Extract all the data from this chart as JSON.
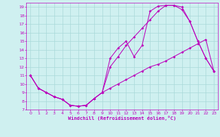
{
  "xlabel": "Windchill (Refroidissement éolien,°C)",
  "bg_color": "#cff0f0",
  "grid_color": "#a8d8d8",
  "line_color": "#bb00bb",
  "xlim": [
    -0.5,
    23.5
  ],
  "ylim": [
    7,
    19.5
  ],
  "xticks": [
    0,
    1,
    2,
    3,
    4,
    5,
    6,
    7,
    8,
    9,
    10,
    11,
    12,
    13,
    14,
    15,
    16,
    17,
    18,
    19,
    20,
    21,
    22,
    23
  ],
  "yticks": [
    7,
    8,
    9,
    10,
    11,
    12,
    13,
    14,
    15,
    16,
    17,
    18,
    19
  ],
  "curve1_x": [
    0,
    1,
    2,
    3,
    4,
    5,
    6,
    7,
    8,
    9,
    10,
    11,
    12,
    13,
    14,
    15,
    16,
    17,
    18,
    19,
    20,
    21,
    22,
    23
  ],
  "curve1_y": [
    11,
    9.5,
    9.0,
    8.5,
    8.2,
    7.5,
    7.4,
    7.5,
    8.3,
    9.0,
    9.5,
    10.0,
    10.5,
    11.0,
    11.5,
    12.0,
    12.3,
    12.7,
    13.2,
    13.7,
    14.2,
    14.7,
    15.2,
    11.5
  ],
  "curve2_x": [
    0,
    1,
    2,
    3,
    4,
    5,
    6,
    7,
    8,
    9,
    10,
    11,
    12,
    13,
    14,
    15,
    16,
    17,
    18,
    19,
    20,
    21,
    22,
    23
  ],
  "curve2_y": [
    11,
    9.5,
    9.0,
    8.5,
    8.2,
    7.5,
    7.4,
    7.5,
    8.3,
    9.0,
    13.0,
    14.2,
    15.0,
    13.2,
    14.5,
    18.5,
    19.1,
    19.2,
    19.2,
    18.7,
    17.3,
    15.0,
    13.0,
    11.5
  ],
  "curve3_x": [
    0,
    1,
    2,
    3,
    4,
    5,
    6,
    7,
    8,
    9,
    10,
    11,
    12,
    13,
    14,
    15,
    16,
    17,
    18,
    19,
    20,
    21,
    22,
    23
  ],
  "curve3_y": [
    11,
    9.5,
    9.0,
    8.5,
    8.2,
    7.5,
    7.4,
    7.5,
    8.3,
    9.0,
    12.0,
    13.2,
    14.5,
    15.5,
    16.5,
    17.5,
    18.5,
    19.2,
    19.2,
    19.0,
    17.3,
    15.0,
    13.0,
    11.5
  ]
}
